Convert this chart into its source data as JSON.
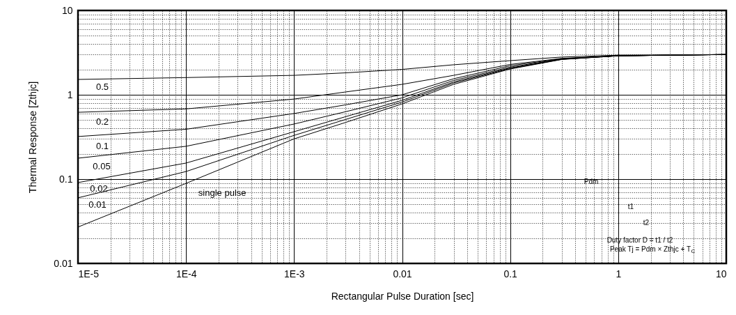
{
  "chart_data": {
    "type": "line",
    "xlabel": "Rectangular Pulse Duration [sec]",
    "ylabel": "Thermal Response [Zthjc]",
    "log": "xy",
    "grid": true,
    "line_style": "solid",
    "marker": "none",
    "x": [
      1e-05,
      0.0001,
      0.001,
      0.003,
      0.01,
      0.03,
      0.1,
      0.3,
      1,
      10
    ],
    "series": [
      {
        "name": "0.5",
        "color": "#000000",
        "values": [
          1.52,
          1.6,
          1.7,
          1.82,
          2.0,
          2.27,
          2.54,
          2.8,
          2.95,
          3.0
        ]
      },
      {
        "name": "0.2",
        "color": "#000000",
        "values": [
          0.62,
          0.68,
          0.89,
          1.08,
          1.33,
          1.7,
          2.29,
          2.7,
          2.9,
          3.0
        ]
      },
      {
        "name": "0.1",
        "color": "#000000",
        "values": [
          0.32,
          0.39,
          0.6,
          0.76,
          1.0,
          1.55,
          2.21,
          2.68,
          2.9,
          3.0
        ]
      },
      {
        "name": "0.05",
        "color": "#000000",
        "values": [
          0.177,
          0.245,
          0.45,
          0.63,
          0.92,
          1.48,
          2.13,
          2.66,
          2.9,
          3.0
        ]
      },
      {
        "name": "0.02",
        "color": "#000000",
        "values": [
          0.091,
          0.155,
          0.365,
          0.55,
          0.86,
          1.42,
          2.08,
          2.64,
          2.9,
          3.0
        ]
      },
      {
        "name": "0.01",
        "color": "#000000",
        "values": [
          0.06,
          0.123,
          0.33,
          0.51,
          0.82,
          1.38,
          2.05,
          2.63,
          2.9,
          3.0
        ]
      },
      {
        "name": "single pulse",
        "color": "#000000",
        "values": [
          0.027,
          0.089,
          0.3,
          0.47,
          0.78,
          1.33,
          2.02,
          2.62,
          2.9,
          3.0
        ]
      }
    ],
    "xlim": [
      1e-05,
      10
    ],
    "ylim": [
      0.01,
      10
    ],
    "xticks": [
      {
        "value": 1e-05,
        "label": "1E-5"
      },
      {
        "value": 0.0001,
        "label": "1E-4"
      },
      {
        "value": 0.001,
        "label": "1E-3"
      },
      0.01,
      0.1,
      1,
      10
    ],
    "yticks": [
      0.01,
      0.1,
      1,
      10
    ],
    "annotations": [
      "Pdm",
      "t1",
      "t2",
      "Duty factor D = t1 / t2",
      "Peak Tj = Pdm × Zthjc + T$_{C}$"
    ]
  }
}
